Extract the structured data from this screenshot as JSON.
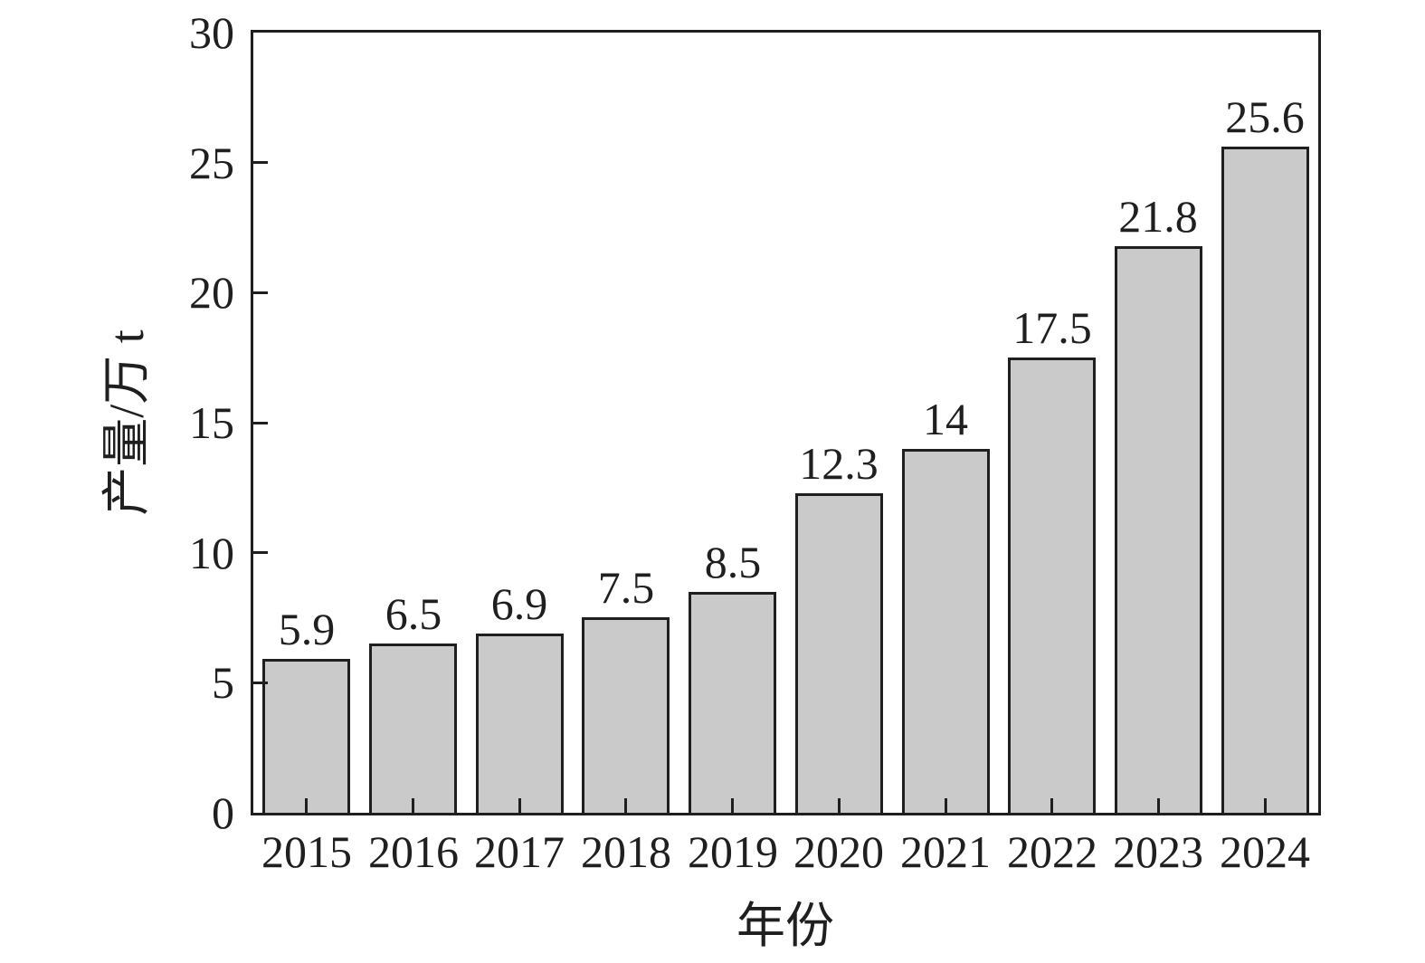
{
  "chart_data": {
    "type": "bar",
    "categories": [
      "2015",
      "2016",
      "2017",
      "2018",
      "2019",
      "2020",
      "2021",
      "2022",
      "2023",
      "2024"
    ],
    "values": [
      5.9,
      6.5,
      6.9,
      7.5,
      8.5,
      12.3,
      14,
      17.5,
      21.8,
      25.6
    ],
    "bar_labels": [
      "5.9",
      "6.5",
      "6.9",
      "7.5",
      "8.5",
      "12.3",
      "14",
      "17.5",
      "21.8",
      "25.6"
    ],
    "title": "",
    "xlabel": "年份",
    "ylabel": "产量/万 t",
    "ylim": [
      0,
      30
    ],
    "yticks": [
      0,
      5,
      10,
      15,
      20,
      25,
      30
    ],
    "grid": false,
    "legend": false,
    "colors": {
      "bar_fill": "#cacaca",
      "bar_border": "#1f1f1f",
      "axis": "#1f1f1f",
      "text": "#1f1f1f",
      "background": "#ffffff"
    }
  }
}
